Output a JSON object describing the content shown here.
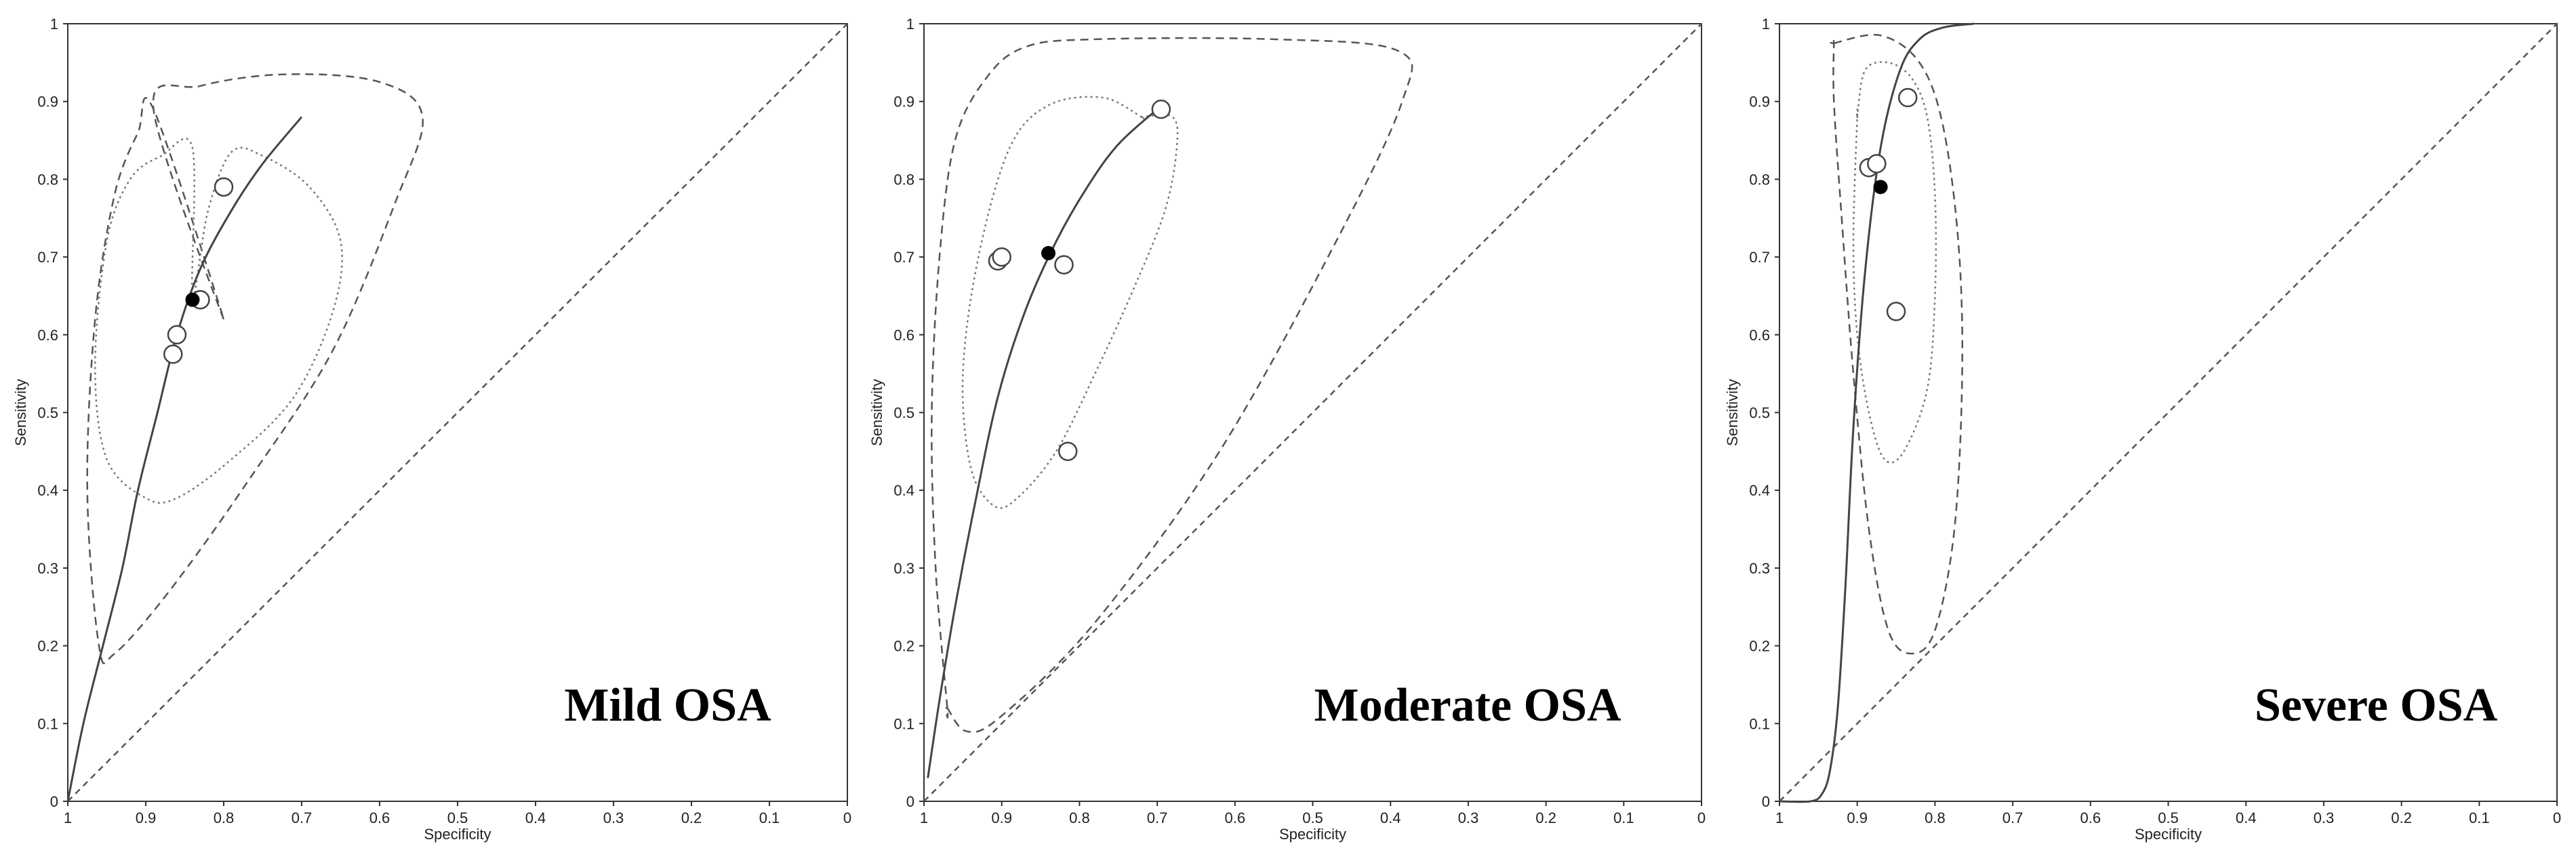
{
  "chart_data": [
    {
      "type": "scatter",
      "title": "Mild OSA",
      "xlabel": "Specificity",
      "ylabel": "Sensitivity",
      "xlim": [
        1,
        0
      ],
      "ylim": [
        0,
        1
      ],
      "x_ticks": [
        "1",
        "0.9",
        "0.8",
        "0.7",
        "0.6",
        "0.5",
        "0.4",
        "0.3",
        "0.2",
        "0.1",
        "0"
      ],
      "y_ticks": [
        "0",
        "0.1",
        "0.2",
        "0.3",
        "0.4",
        "0.5",
        "0.6",
        "0.7",
        "0.8",
        "0.9",
        "1"
      ],
      "studies": [
        {
          "spec": 0.8,
          "sens": 0.79
        },
        {
          "spec": 0.83,
          "sens": 0.645
        },
        {
          "spec": 0.86,
          "sens": 0.6
        },
        {
          "spec": 0.865,
          "sens": 0.575
        }
      ],
      "summary_point": {
        "spec": 0.84,
        "sens": 0.645
      },
      "sroc_curve": [
        [
          1.0,
          0.0
        ],
        [
          0.98,
          0.1
        ],
        [
          0.955,
          0.2
        ],
        [
          0.93,
          0.3
        ],
        [
          0.91,
          0.4
        ],
        [
          0.885,
          0.5
        ],
        [
          0.86,
          0.6
        ],
        [
          0.83,
          0.685
        ],
        [
          0.79,
          0.76
        ],
        [
          0.75,
          0.82
        ],
        [
          0.7,
          0.88
        ]
      ],
      "confidence_region": [
        [
          0.84,
          0.65
        ],
        [
          0.82,
          0.76
        ],
        [
          0.79,
          0.835
        ],
        [
          0.75,
          0.83
        ],
        [
          0.69,
          0.79
        ],
        [
          0.65,
          0.72
        ],
        [
          0.66,
          0.63
        ],
        [
          0.71,
          0.52
        ],
        [
          0.79,
          0.44
        ],
        [
          0.86,
          0.39
        ],
        [
          0.9,
          0.39
        ],
        [
          0.95,
          0.44
        ],
        [
          0.965,
          0.56
        ],
        [
          0.95,
          0.72
        ],
        [
          0.92,
          0.8
        ],
        [
          0.88,
          0.83
        ],
        [
          0.84,
          0.84
        ]
      ],
      "prediction_region": [
        [
          0.8,
          0.62
        ],
        [
          0.89,
          0.89
        ],
        [
          0.83,
          0.92
        ],
        [
          0.72,
          0.935
        ],
        [
          0.6,
          0.925
        ],
        [
          0.545,
          0.88
        ],
        [
          0.58,
          0.77
        ],
        [
          0.66,
          0.58
        ],
        [
          0.77,
          0.41
        ],
        [
          0.87,
          0.27
        ],
        [
          0.94,
          0.19
        ],
        [
          0.96,
          0.2
        ],
        [
          0.975,
          0.4
        ],
        [
          0.965,
          0.62
        ],
        [
          0.94,
          0.78
        ],
        [
          0.91,
          0.86
        ],
        [
          0.89,
          0.89
        ]
      ]
    },
    {
      "type": "scatter",
      "title": "Moderate OSA",
      "xlabel": "Specificity",
      "ylabel": "Sensitivity",
      "xlim": [
        1,
        0
      ],
      "ylim": [
        0,
        1
      ],
      "x_ticks": [
        "1",
        "0.9",
        "0.8",
        "0.7",
        "0.6",
        "0.5",
        "0.4",
        "0.3",
        "0.2",
        "0.1",
        "0"
      ],
      "y_ticks": [
        "0",
        "0.1",
        "0.2",
        "0.3",
        "0.4",
        "0.5",
        "0.6",
        "0.7",
        "0.8",
        "0.9",
        "1"
      ],
      "studies": [
        {
          "spec": 0.695,
          "sens": 0.89
        },
        {
          "spec": 0.905,
          "sens": 0.695
        },
        {
          "spec": 0.9,
          "sens": 0.7
        },
        {
          "spec": 0.82,
          "sens": 0.69
        },
        {
          "spec": 0.815,
          "sens": 0.45
        }
      ],
      "summary_point": {
        "spec": 0.84,
        "sens": 0.705
      },
      "sroc_curve": [
        [
          0.995,
          0.03
        ],
        [
          0.98,
          0.13
        ],
        [
          0.96,
          0.25
        ],
        [
          0.935,
          0.38
        ],
        [
          0.905,
          0.52
        ],
        [
          0.87,
          0.63
        ],
        [
          0.83,
          0.72
        ],
        [
          0.79,
          0.79
        ],
        [
          0.75,
          0.845
        ],
        [
          0.7,
          0.89
        ]
      ],
      "confidence_region": [
        [
          0.72,
          0.88
        ],
        [
          0.77,
          0.905
        ],
        [
          0.84,
          0.895
        ],
        [
          0.89,
          0.84
        ],
        [
          0.93,
          0.7
        ],
        [
          0.95,
          0.55
        ],
        [
          0.94,
          0.43
        ],
        [
          0.91,
          0.38
        ],
        [
          0.88,
          0.39
        ],
        [
          0.83,
          0.45
        ],
        [
          0.78,
          0.55
        ],
        [
          0.73,
          0.66
        ],
        [
          0.69,
          0.76
        ],
        [
          0.675,
          0.84
        ],
        [
          0.68,
          0.88
        ],
        [
          0.72,
          0.88
        ]
      ],
      "prediction_region": [
        [
          0.97,
          0.12
        ],
        [
          0.945,
          0.09
        ],
        [
          0.9,
          0.11
        ],
        [
          0.78,
          0.23
        ],
        [
          0.62,
          0.45
        ],
        [
          0.47,
          0.72
        ],
        [
          0.385,
          0.9
        ],
        [
          0.39,
          0.965
        ],
        [
          0.55,
          0.98
        ],
        [
          0.78,
          0.98
        ],
        [
          0.87,
          0.97
        ],
        [
          0.92,
          0.93
        ],
        [
          0.96,
          0.85
        ],
        [
          0.98,
          0.7
        ],
        [
          0.99,
          0.5
        ],
        [
          0.985,
          0.3
        ],
        [
          0.97,
          0.12
        ]
      ]
    },
    {
      "type": "scatter",
      "title": "Severe OSA",
      "xlabel": "Specificity",
      "ylabel": "Sensitivity",
      "xlim": [
        1,
        0
      ],
      "ylim": [
        0,
        1
      ],
      "x_ticks": [
        "1",
        "0.9",
        "0.8",
        "0.7",
        "0.6",
        "0.5",
        "0.4",
        "0.3",
        "0.2",
        "0.1",
        "0"
      ],
      "y_ticks": [
        "0",
        "0.1",
        "0.2",
        "0.3",
        "0.4",
        "0.5",
        "0.6",
        "0.7",
        "0.8",
        "0.9",
        "1"
      ],
      "studies": [
        {
          "spec": 0.835,
          "sens": 0.905
        },
        {
          "spec": 0.885,
          "sens": 0.815
        },
        {
          "spec": 0.875,
          "sens": 0.82
        },
        {
          "spec": 0.85,
          "sens": 0.63
        }
      ],
      "summary_point": {
        "spec": 0.87,
        "sens": 0.79
      },
      "sroc_curve": [
        [
          1.0,
          0.0
        ],
        [
          0.96,
          0.0
        ],
        [
          0.945,
          0.01
        ],
        [
          0.935,
          0.04
        ],
        [
          0.925,
          0.12
        ],
        [
          0.915,
          0.28
        ],
        [
          0.905,
          0.48
        ],
        [
          0.89,
          0.68
        ],
        [
          0.87,
          0.84
        ],
        [
          0.845,
          0.94
        ],
        [
          0.82,
          0.98
        ],
        [
          0.79,
          0.995
        ],
        [
          0.75,
          1.0
        ]
      ],
      "confidence_region": [
        [
          0.9,
          0.88
        ],
        [
          0.89,
          0.94
        ],
        [
          0.86,
          0.95
        ],
        [
          0.83,
          0.93
        ],
        [
          0.81,
          0.88
        ],
        [
          0.8,
          0.78
        ],
        [
          0.8,
          0.65
        ],
        [
          0.81,
          0.53
        ],
        [
          0.84,
          0.45
        ],
        [
          0.865,
          0.44
        ],
        [
          0.885,
          0.5
        ],
        [
          0.9,
          0.6
        ],
        [
          0.905,
          0.72
        ],
        [
          0.9,
          0.88
        ]
      ],
      "prediction_region": [
        [
          0.93,
          0.975
        ],
        [
          0.87,
          0.985
        ],
        [
          0.82,
          0.95
        ],
        [
          0.79,
          0.87
        ],
        [
          0.77,
          0.72
        ],
        [
          0.765,
          0.55
        ],
        [
          0.775,
          0.35
        ],
        [
          0.8,
          0.22
        ],
        [
          0.83,
          0.19
        ],
        [
          0.86,
          0.22
        ],
        [
          0.885,
          0.35
        ],
        [
          0.905,
          0.55
        ],
        [
          0.92,
          0.75
        ],
        [
          0.93,
          0.9
        ],
        [
          0.93,
          0.975
        ]
      ]
    }
  ]
}
